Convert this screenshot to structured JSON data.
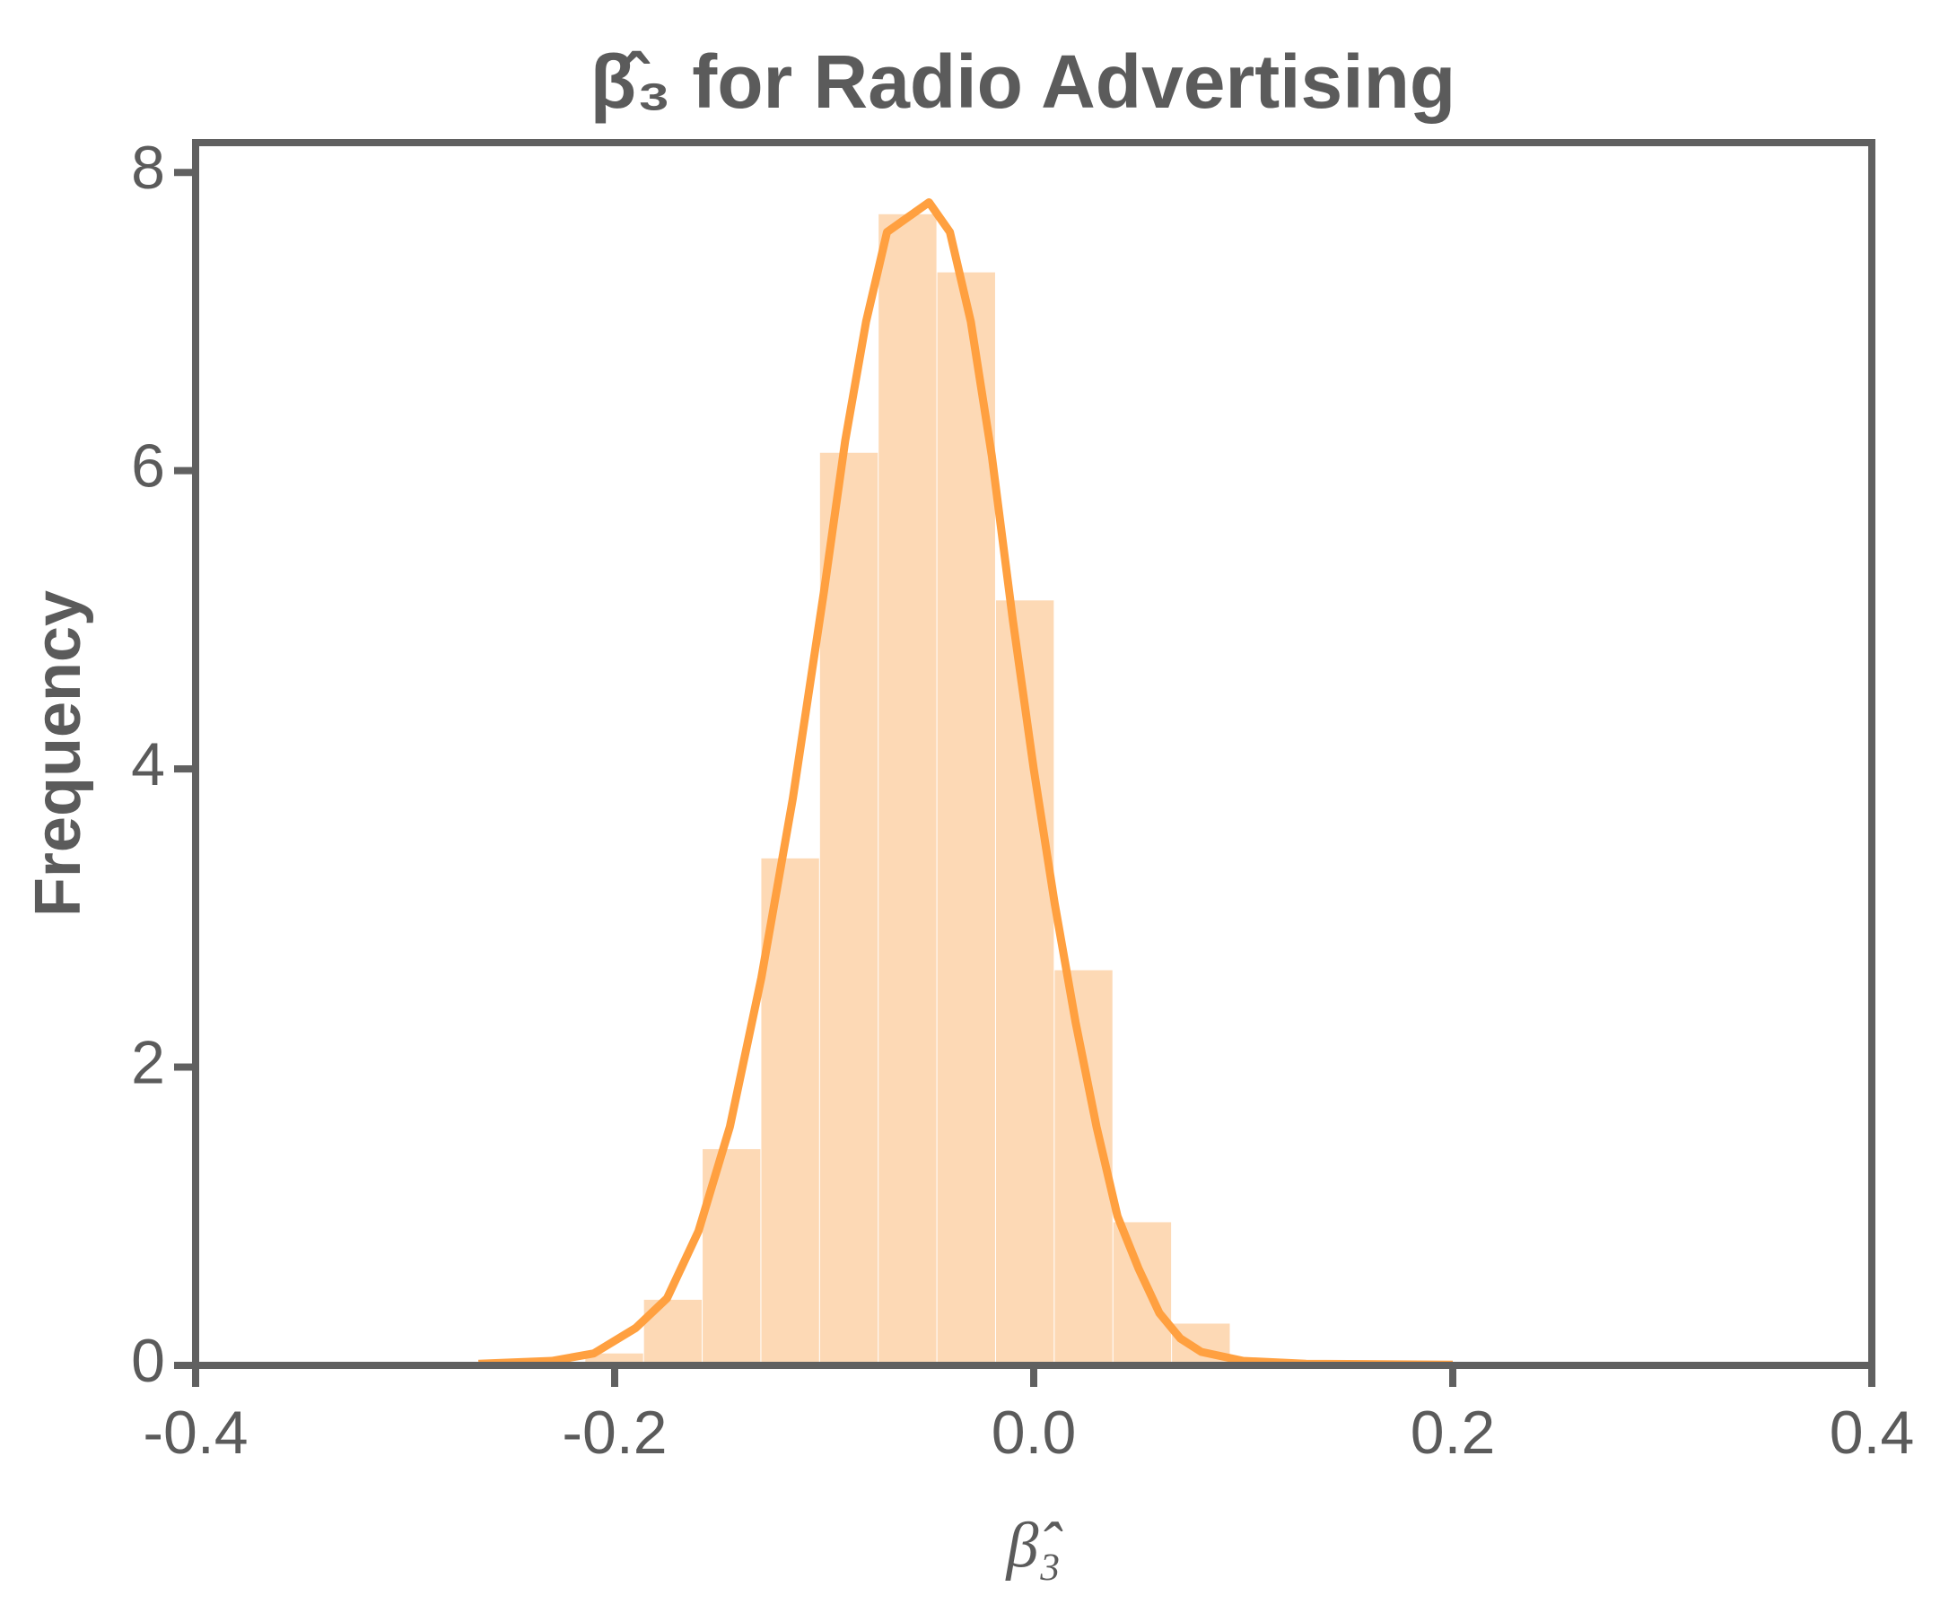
{
  "chart_data": {
    "type": "histogram",
    "title": "β̂₃ for Radio Advertising",
    "xlabel": "β̂₃",
    "ylabel": "Frequency",
    "bins": [
      -0.214,
      -0.186,
      -0.158,
      -0.13,
      -0.102,
      -0.074,
      -0.046,
      -0.018,
      0.01,
      0.038,
      0.066,
      0.094,
      0.122
    ],
    "values": [
      0.08,
      0.44,
      1.45,
      3.4,
      6.12,
      7.72,
      7.33,
      5.13,
      2.65,
      0.96,
      0.28,
      0.04
    ],
    "color": "#fdd9b5",
    "kde": {
      "color": "#ffa040",
      "x": [
        -0.265,
        -0.23,
        -0.21,
        -0.19,
        -0.175,
        -0.16,
        -0.145,
        -0.13,
        -0.115,
        -0.1,
        -0.09,
        -0.08,
        -0.07,
        -0.06,
        -0.05,
        -0.04,
        -0.03,
        -0.02,
        -0.01,
        0.0,
        0.01,
        0.02,
        0.03,
        0.04,
        0.05,
        0.06,
        0.07,
        0.08,
        0.1,
        0.13,
        0.2
      ],
      "y": [
        0.01,
        0.03,
        0.08,
        0.25,
        0.45,
        0.9,
        1.6,
        2.6,
        3.8,
        5.2,
        6.2,
        7.0,
        7.6,
        7.7,
        7.8,
        7.6,
        7.0,
        6.1,
        5.0,
        4.0,
        3.1,
        2.3,
        1.6,
        1.0,
        0.65,
        0.35,
        0.18,
        0.09,
        0.03,
        0.01,
        0.005
      ]
    },
    "xlim": [
      -0.4,
      0.4
    ],
    "ylim": [
      0,
      8.2
    ],
    "xticks": [
      -0.4,
      -0.2,
      {
        "value": 0,
        "label": "0.0"
      },
      0.2,
      0.4
    ],
    "yticks": [
      0,
      2,
      4,
      6,
      8
    ]
  }
}
